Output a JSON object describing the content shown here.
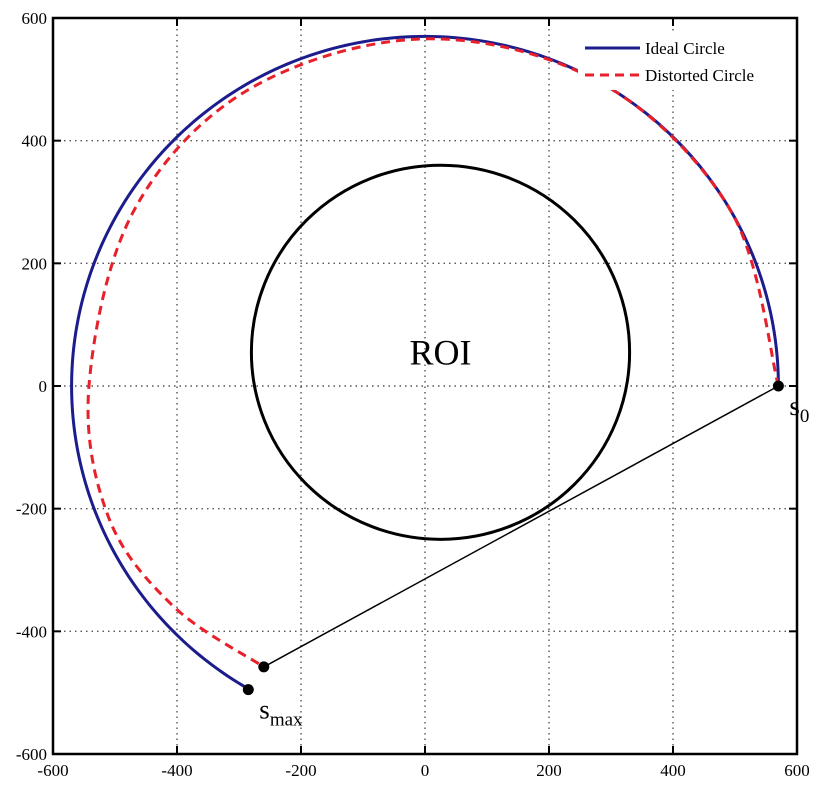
{
  "chart_data": {
    "type": "line",
    "title": "",
    "xlabel": "",
    "ylabel": "",
    "xlim": [
      -600,
      600
    ],
    "ylim": [
      -600,
      600
    ],
    "xticks": [
      -600,
      -400,
      -200,
      0,
      200,
      400,
      600
    ],
    "yticks": [
      -600,
      -400,
      -200,
      0,
      200,
      400,
      600
    ],
    "xtick_labels": [
      "-600",
      "-400",
      "-200",
      "0",
      "200",
      "400",
      "600"
    ],
    "ytick_labels": [
      "-600",
      "-400",
      "-200",
      "0",
      "200",
      "400",
      "600"
    ],
    "grid": true,
    "grid_style": "dotted",
    "legend_position": "top-right",
    "series": [
      {
        "name": "Ideal Circle",
        "color": "#1c1c8c",
        "style": "solid",
        "center": [
          0,
          0
        ],
        "radius": 570,
        "theta_start_deg": 0,
        "theta_end_deg": 240
      },
      {
        "name": "Distorted Circle",
        "color": "#e8202a",
        "style": "dashed",
        "arc_start_deg": 0,
        "arc_end_deg": 240,
        "points": [
          [
            570,
            0
          ],
          [
            493.6,
            285
          ],
          [
            285,
            493.6
          ],
          [
            0,
            566
          ],
          [
            -285,
            483
          ],
          [
            -470,
            285
          ],
          [
            -542,
            0
          ],
          [
            -510,
            -215
          ],
          [
            -405,
            -360
          ],
          [
            -260,
            -458
          ]
        ]
      }
    ],
    "roi": {
      "label": "ROI",
      "center": [
        25,
        55
      ],
      "radius": 305,
      "color": "#000000"
    },
    "points": [
      {
        "label": "s",
        "subscript": "0",
        "x": 570,
        "y": 0
      },
      {
        "label": "s",
        "subscript": "max",
        "x": -285,
        "y": -495
      },
      {
        "label": "",
        "subscript": "",
        "x": -260,
        "y": -458
      }
    ],
    "connector": {
      "from": [
        570,
        0
      ],
      "to": [
        -260,
        -458
      ],
      "color": "#000000"
    }
  }
}
